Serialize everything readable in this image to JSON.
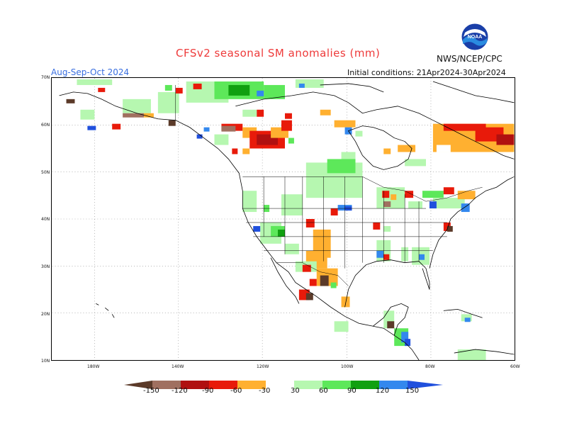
{
  "title": "CFSv2 seasonal SM anomalies (mm)",
  "period": "Aug-Sep-Oct 2024",
  "initial_conditions": "Initial conditions: 21Apr2024-30Apr2024",
  "agency": "NWS/NCEP/CPC",
  "logo_text": "NOAA",
  "lat_labels": [
    "70N",
    "60N",
    "50N",
    "40N",
    "30N",
    "20N",
    "10N"
  ],
  "lon_labels": [
    "180W",
    "140W",
    "120W",
    "100W",
    "80W",
    "60W"
  ],
  "colorbar": {
    "labels": [
      "-150",
      "-120",
      "-90",
      "-60",
      "-30",
      "30",
      "60",
      "90",
      "120",
      "150"
    ],
    "colors": [
      "#5b3a29",
      "#a07060",
      "#b01010",
      "#e81a0a",
      "#ff6a00",
      "#ffb030",
      "#ffffff",
      "#b6f7b0",
      "#5de85a",
      "#10a010",
      "#3388ee",
      "#2050dd"
    ]
  },
  "colors": {
    "title": "#ee3a3a",
    "period": "#3a6fe0",
    "dry_strong": "#e81a0a",
    "dry_mod": "#ffb030",
    "wet_light": "#b6f7b0",
    "wet_mod": "#5de85a",
    "wet_strong": "#10a010",
    "wet_very": "#3388ee"
  }
}
